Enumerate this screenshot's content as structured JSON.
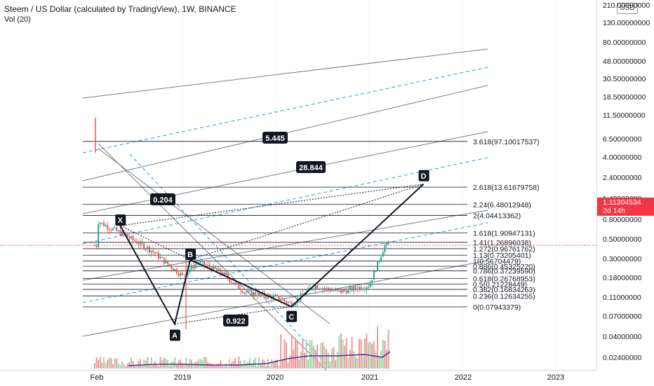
{
  "legend": {
    "title": "Steem / US Dollar (calculated by TradingView), 1W, BINANCE",
    "volume": "Vol (20)"
  },
  "price_axis": {
    "currency": "USD",
    "labels": [
      "210.00000000",
      "130.00000000",
      "80.00000000",
      "48.00000000",
      "30.50000000",
      "18.50000000",
      "11.50000000",
      "6.50000000",
      "4.00000000",
      "2.40000000",
      "1.40000000",
      "0.80000000",
      "0.50000000",
      "0.30000000",
      "0.18000000",
      "0.11000000",
      "0.07000000",
      "0.04000000",
      "0.02400000"
    ],
    "current_price": "1.11304534",
    "countdown": "2d 14h"
  },
  "time_axis": {
    "labels": [
      "Feb",
      "2019",
      "2020",
      "2021",
      "2022",
      "2023"
    ]
  },
  "colors": {
    "up": "#26a69a",
    "down": "#ef5350",
    "price_tag": "#f23645",
    "channel_gray": "#787b86",
    "channel_blue": "#2196f3",
    "volume_ma": "#512da8"
  },
  "chart_data": {
    "type": "candlestick",
    "series_name": "Steem / US Dollar",
    "y_scale": "log",
    "ylim": [
      0.02,
      210
    ],
    "x": [
      "2018-02",
      "2018-06",
      "2018-09",
      "2019-01",
      "2019-03",
      "2019-06",
      "2019-09",
      "2020-01",
      "2020-03",
      "2020-06",
      "2020-09",
      "2021-01",
      "2021-03"
    ],
    "close": [
      3.2,
      1.6,
      0.9,
      0.3,
      0.55,
      0.35,
      0.15,
      0.12,
      0.09,
      0.2,
      0.15,
      0.2,
      1.11
    ],
    "fibonacci": [
      {
        "label": "3.618(97.10017537)",
        "price": 97.10017537
      },
      {
        "label": "2.618(13.61679758)",
        "price": 13.61679758
      },
      {
        "label": "2.24(6.48012948)",
        "price": 6.48012948
      },
      {
        "label": "2(4.04413362)",
        "price": 4.04413362
      },
      {
        "label": "1.618(1.90947131)",
        "price": 1.90947131
      },
      {
        "label": "1.41(1.26896038)",
        "price": 1.26896038
      },
      {
        "label": "1.272(0.96761762)",
        "price": 0.96761762
      },
      {
        "label": "1.13(0.73205401)",
        "price": 0.73205401
      },
      {
        "label": "1(0.56704479)",
        "price": 0.56704479
      },
      {
        "label": "0.886(0.45325220)",
        "price": 0.4532522
      },
      {
        "label": "0.786(0.37239590)",
        "price": 0.3723959
      },
      {
        "label": "0.618(0.26768953)",
        "price": 0.26768953
      },
      {
        "label": "0.5(0.21228449)",
        "price": 0.21228449
      },
      {
        "label": "0.382(0.16834263)",
        "price": 0.16834263
      },
      {
        "label": "0.236(0.12634255)",
        "price": 0.12634255
      },
      {
        "label": "0(0.07943379)",
        "price": 0.07943379
      }
    ],
    "pattern_points": [
      {
        "label": "X",
        "date": "2018-05",
        "price": 2.6
      },
      {
        "label": "A",
        "date": "2018-12",
        "price": 0.038
      },
      {
        "label": "B",
        "date": "2019-02",
        "price": 0.6
      },
      {
        "label": "C",
        "date": "2020-03",
        "price": 0.08
      },
      {
        "label": "D",
        "date": "2021-08",
        "price": 15.5
      }
    ],
    "ratios": [
      {
        "label": "5.445"
      },
      {
        "label": "28.844"
      },
      {
        "label": "0.204"
      },
      {
        "label": "0.922"
      }
    ]
  }
}
